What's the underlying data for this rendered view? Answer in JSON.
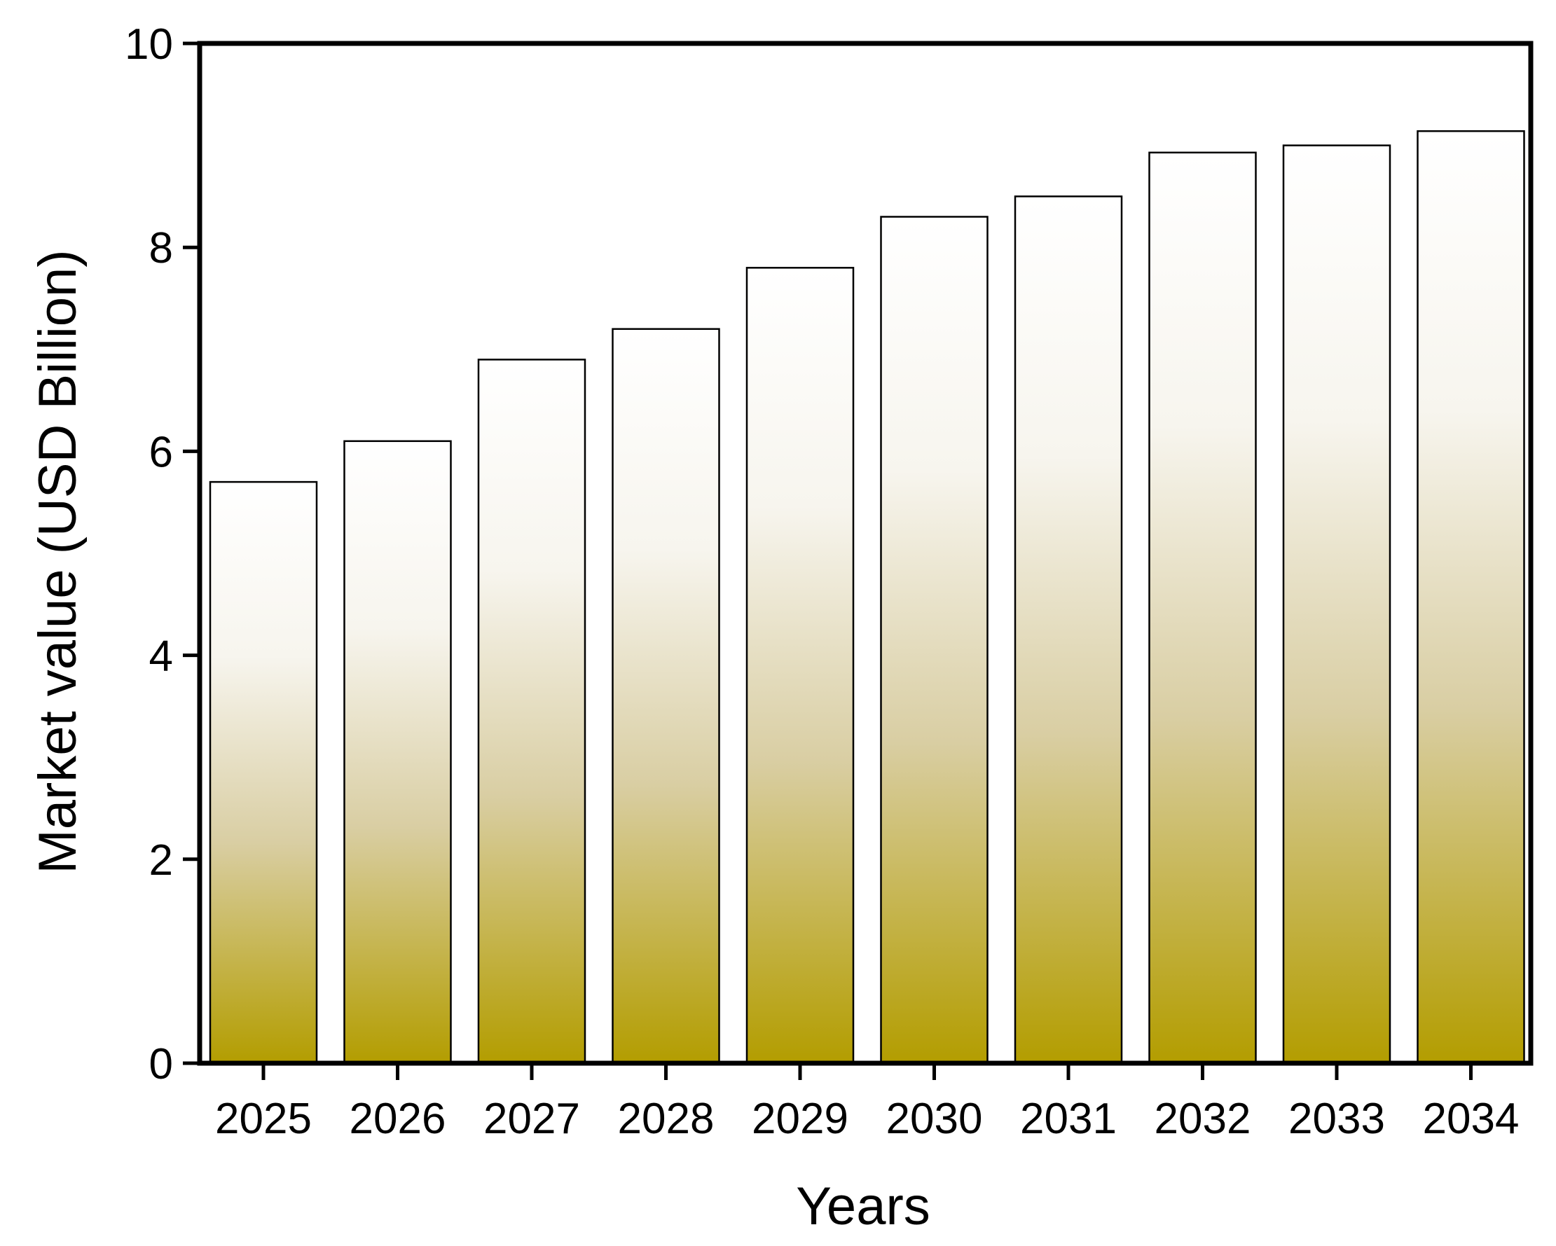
{
  "chart_data": {
    "type": "bar",
    "xlabel": "Years",
    "ylabel": "Market value (USD Billion)",
    "categories": [
      "2025",
      "2026",
      "2027",
      "2028",
      "2029",
      "2030",
      "2031",
      "2032",
      "2033",
      "2034"
    ],
    "values": [
      5.7,
      6.1,
      6.9,
      7.2,
      7.8,
      8.3,
      8.5,
      8.93,
      9.0,
      9.14
    ],
    "ylim": [
      0,
      10
    ],
    "yticks": [
      "0",
      "2",
      "4",
      "6",
      "8",
      "10"
    ],
    "grid": false,
    "legend": "none",
    "bar_gradient": {
      "top_color": "#ffffff",
      "bottom_color": "#b39d00"
    },
    "bar_edge_color": "#000000"
  }
}
